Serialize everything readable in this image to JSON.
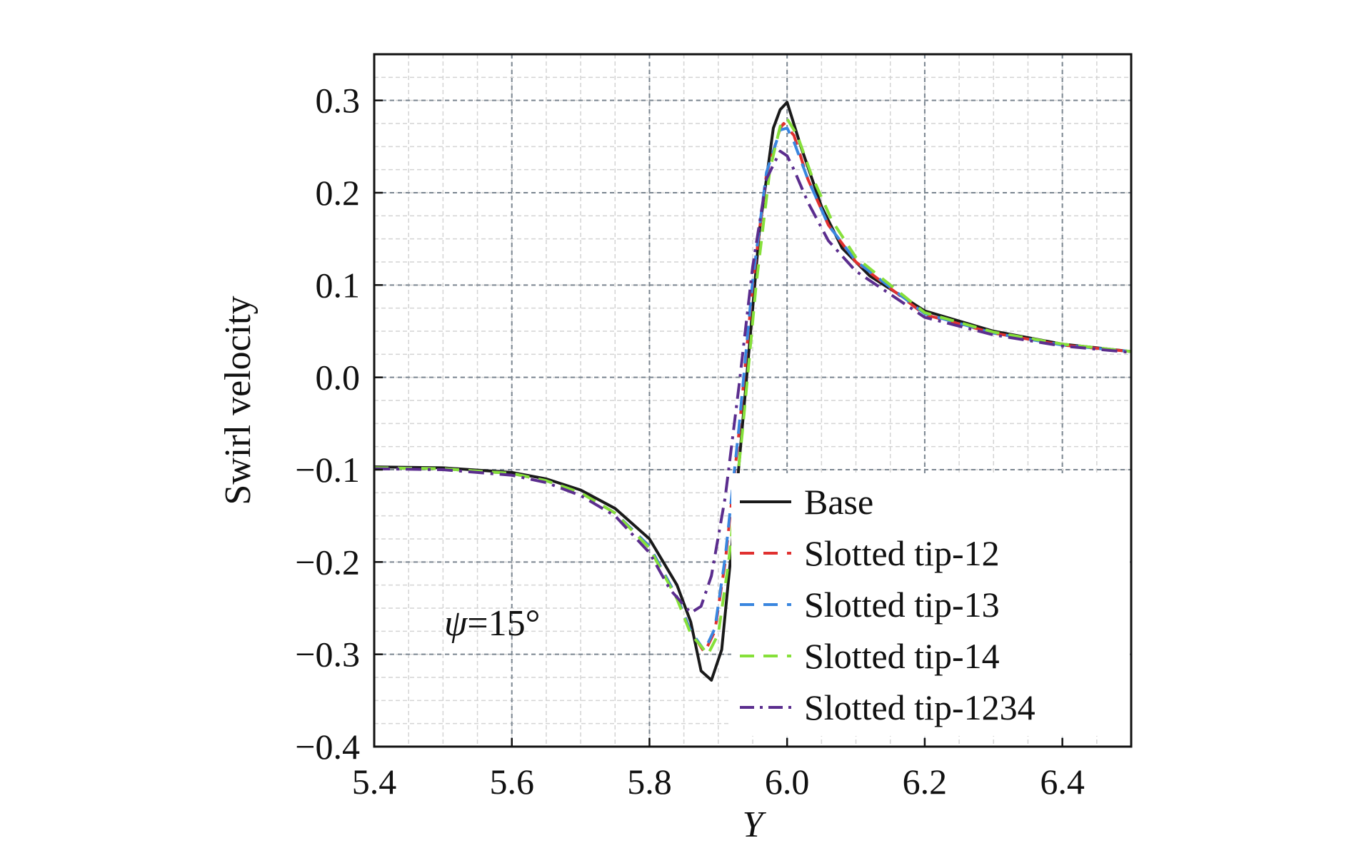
{
  "chart_data": {
    "type": "line",
    "xlabel": "Y",
    "ylabel": "Swirl velocity",
    "xlim": [
      5.4,
      6.5
    ],
    "ylim": [
      -0.4,
      0.35
    ],
    "x_ticks": [
      5.4,
      5.6,
      5.8,
      6.0,
      6.2,
      6.4
    ],
    "x_tick_labels": [
      "5.4",
      "5.6",
      "5.8",
      "6.0",
      "6.2",
      "6.4"
    ],
    "y_ticks": [
      -0.4,
      -0.3,
      -0.2,
      -0.1,
      0.0,
      0.1,
      0.2,
      0.3
    ],
    "y_tick_labels": [
      "−0.4",
      "−0.3",
      "−0.2",
      "−0.1",
      "0.0",
      "0.1",
      "0.2",
      "0.3"
    ],
    "grid": true,
    "legend_position": "bottom-right",
    "annotation": {
      "symbol": "ψ",
      "text": "=15°"
    },
    "series": [
      {
        "name": "Base",
        "color": "#1a1a1a",
        "dash": "solid",
        "points": [
          [
            5.4,
            -0.097
          ],
          [
            5.5,
            -0.098
          ],
          [
            5.6,
            -0.103
          ],
          [
            5.65,
            -0.11
          ],
          [
            5.7,
            -0.122
          ],
          [
            5.75,
            -0.142
          ],
          [
            5.8,
            -0.175
          ],
          [
            5.84,
            -0.225
          ],
          [
            5.86,
            -0.265
          ],
          [
            5.875,
            -0.318
          ],
          [
            5.89,
            -0.328
          ],
          [
            5.905,
            -0.295
          ],
          [
            5.92,
            -0.18
          ],
          [
            5.94,
            -0.01
          ],
          [
            5.96,
            0.16
          ],
          [
            5.98,
            0.27
          ],
          [
            5.99,
            0.29
          ],
          [
            6.0,
            0.298
          ],
          [
            6.02,
            0.25
          ],
          [
            6.05,
            0.185
          ],
          [
            6.08,
            0.14
          ],
          [
            6.12,
            0.11
          ],
          [
            6.2,
            0.072
          ],
          [
            6.3,
            0.05
          ],
          [
            6.4,
            0.036
          ],
          [
            6.5,
            0.028
          ]
        ]
      },
      {
        "name": "Slotted tip-12",
        "color": "#e0302f",
        "dash": "dash",
        "points": [
          [
            5.4,
            -0.098
          ],
          [
            5.5,
            -0.099
          ],
          [
            5.6,
            -0.104
          ],
          [
            5.65,
            -0.112
          ],
          [
            5.7,
            -0.125
          ],
          [
            5.75,
            -0.147
          ],
          [
            5.8,
            -0.183
          ],
          [
            5.84,
            -0.238
          ],
          [
            5.86,
            -0.275
          ],
          [
            5.88,
            -0.298
          ],
          [
            5.895,
            -0.275
          ],
          [
            5.91,
            -0.2
          ],
          [
            5.93,
            -0.06
          ],
          [
            5.95,
            0.1
          ],
          [
            5.97,
            0.22
          ],
          [
            5.99,
            0.27
          ],
          [
            5.995,
            0.275
          ],
          [
            6.01,
            0.262
          ],
          [
            6.03,
            0.215
          ],
          [
            6.06,
            0.165
          ],
          [
            6.1,
            0.125
          ],
          [
            6.2,
            0.068
          ],
          [
            6.3,
            0.048
          ],
          [
            6.4,
            0.035
          ],
          [
            6.5,
            0.028
          ]
        ]
      },
      {
        "name": "Slotted tip-13",
        "color": "#3a86df",
        "dash": "dash",
        "points": [
          [
            5.4,
            -0.098
          ],
          [
            5.5,
            -0.099
          ],
          [
            5.6,
            -0.104
          ],
          [
            5.65,
            -0.112
          ],
          [
            5.7,
            -0.125
          ],
          [
            5.75,
            -0.147
          ],
          [
            5.8,
            -0.183
          ],
          [
            5.84,
            -0.238
          ],
          [
            5.86,
            -0.275
          ],
          [
            5.88,
            -0.296
          ],
          [
            5.895,
            -0.272
          ],
          [
            5.91,
            -0.195
          ],
          [
            5.93,
            -0.055
          ],
          [
            5.95,
            0.105
          ],
          [
            5.97,
            0.222
          ],
          [
            5.99,
            0.268
          ],
          [
            6.0,
            0.27
          ],
          [
            6.01,
            0.255
          ],
          [
            6.03,
            0.215
          ],
          [
            6.06,
            0.165
          ],
          [
            6.1,
            0.126
          ],
          [
            6.2,
            0.069
          ],
          [
            6.3,
            0.048
          ],
          [
            6.4,
            0.035
          ],
          [
            6.5,
            0.028
          ]
        ]
      },
      {
        "name": "Slotted tip-14",
        "color": "#86e03a",
        "dash": "dash",
        "points": [
          [
            5.4,
            -0.098
          ],
          [
            5.5,
            -0.099
          ],
          [
            5.6,
            -0.104
          ],
          [
            5.65,
            -0.112
          ],
          [
            5.7,
            -0.125
          ],
          [
            5.75,
            -0.147
          ],
          [
            5.8,
            -0.185
          ],
          [
            5.84,
            -0.24
          ],
          [
            5.86,
            -0.278
          ],
          [
            5.885,
            -0.3
          ],
          [
            5.9,
            -0.278
          ],
          [
            5.915,
            -0.2
          ],
          [
            5.935,
            -0.06
          ],
          [
            5.955,
            0.1
          ],
          [
            5.975,
            0.225
          ],
          [
            5.99,
            0.272
          ],
          [
            6.0,
            0.28
          ],
          [
            6.015,
            0.262
          ],
          [
            6.035,
            0.22
          ],
          [
            6.065,
            0.17
          ],
          [
            6.1,
            0.13
          ],
          [
            6.2,
            0.07
          ],
          [
            6.3,
            0.049
          ],
          [
            6.4,
            0.036
          ],
          [
            6.5,
            0.028
          ]
        ]
      },
      {
        "name": "Slotted tip-1234",
        "color": "#5b2d8e",
        "dash": "dashdot",
        "points": [
          [
            5.4,
            -0.099
          ],
          [
            5.5,
            -0.1
          ],
          [
            5.6,
            -0.106
          ],
          [
            5.65,
            -0.114
          ],
          [
            5.7,
            -0.128
          ],
          [
            5.75,
            -0.15
          ],
          [
            5.8,
            -0.19
          ],
          [
            5.83,
            -0.23
          ],
          [
            5.86,
            -0.255
          ],
          [
            5.875,
            -0.248
          ],
          [
            5.89,
            -0.215
          ],
          [
            5.91,
            -0.13
          ],
          [
            5.93,
            -0.01
          ],
          [
            5.95,
            0.12
          ],
          [
            5.97,
            0.215
          ],
          [
            5.99,
            0.245
          ],
          [
            6.0,
            0.24
          ],
          [
            6.01,
            0.225
          ],
          [
            6.03,
            0.19
          ],
          [
            6.06,
            0.148
          ],
          [
            6.1,
            0.115
          ],
          [
            6.2,
            0.065
          ],
          [
            6.3,
            0.046
          ],
          [
            6.4,
            0.034
          ],
          [
            6.5,
            0.027
          ]
        ]
      }
    ]
  }
}
